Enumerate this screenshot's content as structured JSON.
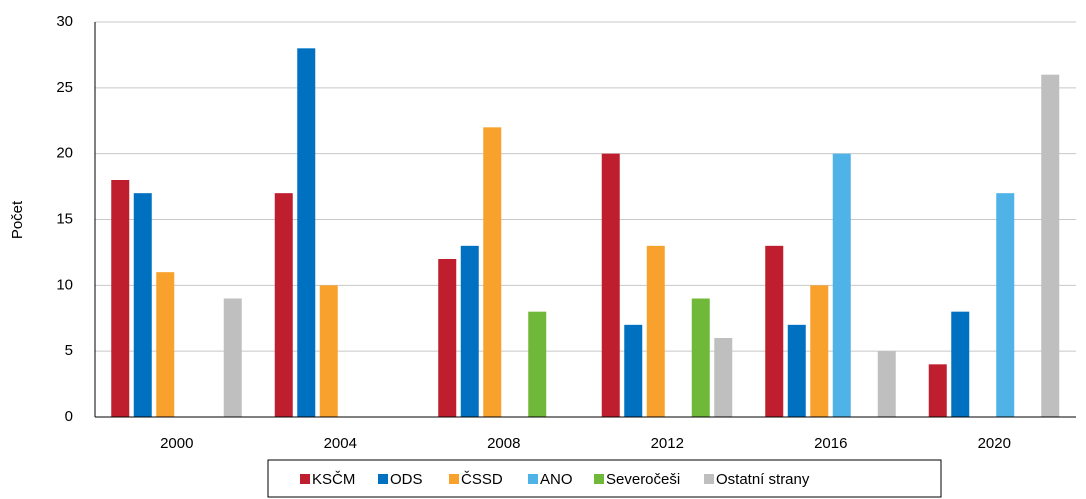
{
  "chart_data": {
    "type": "bar",
    "y_label": "Počet",
    "categories": [
      "2000",
      "2004",
      "2008",
      "2012",
      "2016",
      "2020"
    ],
    "series": [
      {
        "name": "KSČM",
        "color": "#be1e2d",
        "values": [
          18,
          17,
          12,
          20,
          13,
          4
        ]
      },
      {
        "name": "ODS",
        "color": "#0070c0",
        "values": [
          17,
          28,
          13,
          7,
          7,
          8
        ]
      },
      {
        "name": "ČSSD",
        "color": "#f8a12c",
        "values": [
          11,
          10,
          22,
          13,
          10,
          null
        ]
      },
      {
        "name": "ANO",
        "color": "#4fb3e8",
        "values": [
          null,
          null,
          null,
          null,
          20,
          17
        ]
      },
      {
        "name": "Severočeši",
        "color": "#6fb83a",
        "values": [
          null,
          null,
          8,
          9,
          null,
          null
        ]
      },
      {
        "name": "Ostatní strany",
        "color": "#bfbfbf",
        "values": [
          9,
          null,
          null,
          6,
          5,
          26
        ]
      }
    ],
    "ylim": [
      0,
      30
    ],
    "yticks": [
      0,
      5,
      10,
      15,
      20,
      25,
      30
    ],
    "grid": true,
    "legend": "bottom"
  }
}
